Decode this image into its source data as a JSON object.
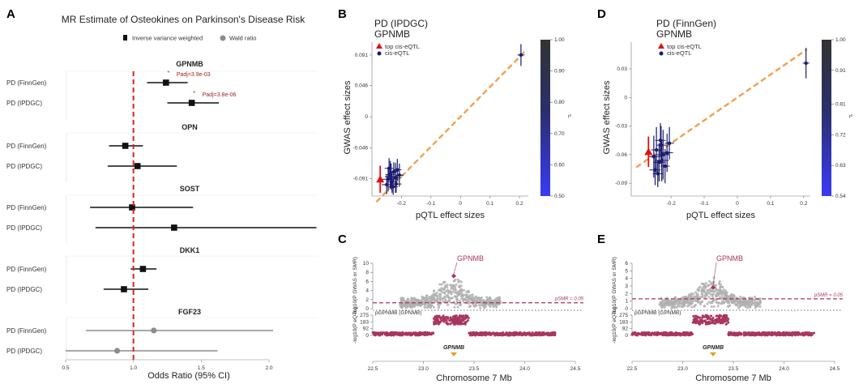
{
  "figure": {
    "panel_letters": [
      "A",
      "B",
      "C",
      "D",
      "E"
    ]
  },
  "colors": {
    "ivw": "#111111",
    "wald": "#8c8c8c",
    "null_line": "#e02020",
    "fit_line": "#f0a050",
    "top_snp": "#e01010",
    "cis_eqtl": "#1a1a6e",
    "smr_genome": "#b0b0b0",
    "eqtl_track": "#a8365d",
    "gene_marker": "#e0a020"
  },
  "chart_data": [
    {
      "panel": "A",
      "type": "forest",
      "title": "MR Estimate of Osteokines on Parkinson's Disease Risk",
      "legend": [
        "Inverse variance weighted",
        "Wald ratio"
      ],
      "xlabel": "Odds Ratio (95% CI)",
      "xlim": [
        0.5,
        2.0
      ],
      "xticks": [
        "0.5",
        "1.0",
        "1.5",
        "2.0"
      ],
      "null_value": 1.0,
      "groups": [
        {
          "gene": "GPNMB",
          "method": "Inverse variance weighted",
          "rows": [
            {
              "label": "PD (FinnGen)",
              "or": 1.24,
              "lo": 1.1,
              "hi": 1.4,
              "annotation": "Padj=3.9e-03"
            },
            {
              "label": "PD (IPDGC)",
              "or": 1.43,
              "lo": 1.25,
              "hi": 1.63,
              "annotation": "Padj=3.8e-06"
            }
          ]
        },
        {
          "gene": "OPN",
          "method": "Inverse variance weighted",
          "rows": [
            {
              "label": "PD (FinnGen)",
              "or": 0.94,
              "lo": 0.82,
              "hi": 1.07
            },
            {
              "label": "PD (IPDGC)",
              "or": 1.03,
              "lo": 0.81,
              "hi": 1.32
            }
          ]
        },
        {
          "gene": "SOST",
          "method": "Inverse variance weighted",
          "rows": [
            {
              "label": "PD (FinnGen)",
              "or": 0.99,
              "lo": 0.68,
              "hi": 1.44
            },
            {
              "label": "PD (IPDGC)",
              "or": 1.3,
              "lo": 0.72,
              "hi": 2.35
            }
          ]
        },
        {
          "gene": "DKK1",
          "method": "Inverse variance weighted",
          "rows": [
            {
              "label": "PD (FinnGen)",
              "or": 1.07,
              "lo": 0.98,
              "hi": 1.17
            },
            {
              "label": "PD (IPDGC)",
              "or": 0.93,
              "lo": 0.78,
              "hi": 1.11
            }
          ]
        },
        {
          "gene": "FGF23",
          "method": "Wald ratio",
          "rows": [
            {
              "label": "PD (FinnGen)",
              "or": 1.15,
              "lo": 0.65,
              "hi": 2.03
            },
            {
              "label": "PD (IPDGC)",
              "or": 0.88,
              "lo": 0.5,
              "hi": 1.62
            }
          ]
        }
      ]
    },
    {
      "panel": "B",
      "type": "scatter",
      "title_lines": [
        "PD (IPDGC)",
        "GPNMB"
      ],
      "xlabel": "pQTL effect sizes",
      "ylabel": "GWAS effect sizes",
      "xlim": [
        -0.3,
        0.23
      ],
      "ylim": [
        -0.112,
        0.11
      ],
      "xticks": [
        -0.2,
        -0.1,
        0,
        0.1,
        0.2
      ],
      "yticks": [
        -0.091,
        -0.046,
        0,
        0.046,
        0.091
      ],
      "legend": [
        "top cis-eQTL",
        "cis-eQTL"
      ],
      "colorbar": {
        "label": "r²",
        "ticks": [
          0.5,
          0.6,
          0.7,
          0.8,
          0.9,
          1.0
        ],
        "range": [
          0.5,
          1.0
        ]
      },
      "fit_slope": 0.44,
      "top_snp": {
        "x": -0.272,
        "y": -0.092,
        "y_lo": -0.112,
        "y_hi": -0.072
      },
      "points": [
        {
          "x": -0.245,
          "y": -0.092,
          "xe": 0.02,
          "ye": 0.018
        },
        {
          "x": -0.238,
          "y": -0.085,
          "xe": 0.016,
          "ye": 0.02
        },
        {
          "x": -0.232,
          "y": -0.096,
          "xe": 0.018,
          "ye": 0.016
        },
        {
          "x": -0.226,
          "y": -0.081,
          "xe": 0.015,
          "ye": 0.014
        },
        {
          "x": -0.22,
          "y": -0.09,
          "xe": 0.02,
          "ye": 0.022
        },
        {
          "x": -0.214,
          "y": -0.078,
          "xe": 0.014,
          "ye": 0.016
        },
        {
          "x": -0.25,
          "y": -0.1,
          "xe": 0.017,
          "ye": 0.014
        },
        {
          "x": -0.228,
          "y": -0.103,
          "xe": 0.016,
          "ye": 0.012
        },
        {
          "x": -0.242,
          "y": -0.076,
          "xe": 0.015,
          "ye": 0.015
        },
        {
          "x": -0.218,
          "y": -0.099,
          "xe": 0.018,
          "ye": 0.013
        },
        {
          "x": -0.235,
          "y": -0.088,
          "xe": 0.021,
          "ye": 0.019
        },
        {
          "x": -0.207,
          "y": -0.086,
          "xe": 0.014,
          "ye": 0.017
        },
        {
          "x": 0.205,
          "y": 0.091,
          "xe": 0.012,
          "ye": 0.016
        }
      ]
    },
    {
      "panel": "C",
      "type": "locus",
      "gene_label": "GPNMB",
      "ylabel_top": "-log10(P GWAS or SMR)",
      "ylabel_bottom": "-log10(P eQTL)",
      "top_ticks": [
        0,
        2,
        4,
        6,
        8,
        10
      ],
      "top_ymax": 10,
      "bottom_ticks": [
        0,
        92,
        183,
        275
      ],
      "bottom_ymax": 275,
      "threshold_label": "pSMR = 0.05",
      "threshold_value": 1.3,
      "track_label": "pGPNMB (GPNMB)",
      "xlabel": "Chromosome 7 Mb",
      "xlim": [
        22.5,
        24.5
      ],
      "xticks": [
        "22.5",
        "23.0",
        "23.5",
        "24.0",
        "24.5"
      ],
      "gene_pos": 23.3,
      "smr_point": {
        "x": 23.3,
        "y": 7.2
      }
    },
    {
      "panel": "D",
      "type": "scatter",
      "title_lines": [
        "PD (FinnGen)",
        "GPNMB"
      ],
      "xlabel": "pQTL effect sizes",
      "ylabel": "GWAS effect sizes",
      "xlim": [
        -0.32,
        0.22
      ],
      "ylim": [
        -0.1,
        0.058
      ],
      "xticks": [
        -0.2,
        -0.1,
        0,
        0.1,
        0.2
      ],
      "yticks": [
        -0.09,
        -0.06,
        -0.03,
        0,
        0.03
      ],
      "legend": [
        "top cis-eQTL",
        "cis-eQTL"
      ],
      "colorbar": {
        "label": "r²",
        "ticks": [
          0.54,
          0.63,
          0.72,
          0.81,
          0.91,
          1.0
        ],
        "range": [
          0.54,
          1.0
        ]
      },
      "fit_slope": 0.24,
      "top_snp": {
        "x": -0.268,
        "y": -0.057,
        "y_lo": -0.073,
        "y_hi": -0.041
      },
      "points": [
        {
          "x": -0.252,
          "y": -0.062,
          "xe": 0.018,
          "ye": 0.022
        },
        {
          "x": -0.244,
          "y": -0.055,
          "xe": 0.016,
          "ye": 0.024
        },
        {
          "x": -0.236,
          "y": -0.068,
          "xe": 0.018,
          "ye": 0.02
        },
        {
          "x": -0.23,
          "y": -0.05,
          "xe": 0.015,
          "ye": 0.02
        },
        {
          "x": -0.224,
          "y": -0.06,
          "xe": 0.02,
          "ye": 0.026
        },
        {
          "x": -0.218,
          "y": -0.072,
          "xe": 0.014,
          "ye": 0.018
        },
        {
          "x": -0.248,
          "y": -0.076,
          "xe": 0.017,
          "ye": 0.016
        },
        {
          "x": -0.232,
          "y": -0.045,
          "xe": 0.016,
          "ye": 0.018
        },
        {
          "x": -0.24,
          "y": -0.08,
          "xe": 0.015,
          "ye": 0.014
        },
        {
          "x": -0.212,
          "y": -0.058,
          "xe": 0.018,
          "ye": 0.02
        },
        {
          "x": -0.228,
          "y": -0.066,
          "xe": 0.021,
          "ye": 0.022
        },
        {
          "x": -0.205,
          "y": -0.048,
          "xe": 0.014,
          "ye": 0.017
        },
        {
          "x": 0.207,
          "y": 0.036,
          "xe": 0.01,
          "ye": 0.016
        }
      ]
    },
    {
      "panel": "E",
      "type": "locus",
      "gene_label": "GPNMB",
      "ylabel_top": "-log10(P GWAS or SMR)",
      "ylabel_bottom": "-log10(P eQTL)",
      "top_ticks": [
        0,
        1,
        2,
        3,
        4,
        5,
        6
      ],
      "top_ymax": 6,
      "bottom_ticks": [
        0,
        92,
        183,
        275
      ],
      "bottom_ymax": 275,
      "threshold_label": "pSMR = 0.05",
      "threshold_value": 1.3,
      "track_label": "pGPNMB (GPNMB)",
      "xlabel": "Chromosome 7 Mb",
      "xlim": [
        22.5,
        24.5
      ],
      "xticks": [
        "22.5",
        "23.0",
        "23.5",
        "24.0",
        "24.5"
      ],
      "gene_pos": 23.3,
      "smr_point": {
        "x": 23.3,
        "y": 2.8
      }
    }
  ]
}
